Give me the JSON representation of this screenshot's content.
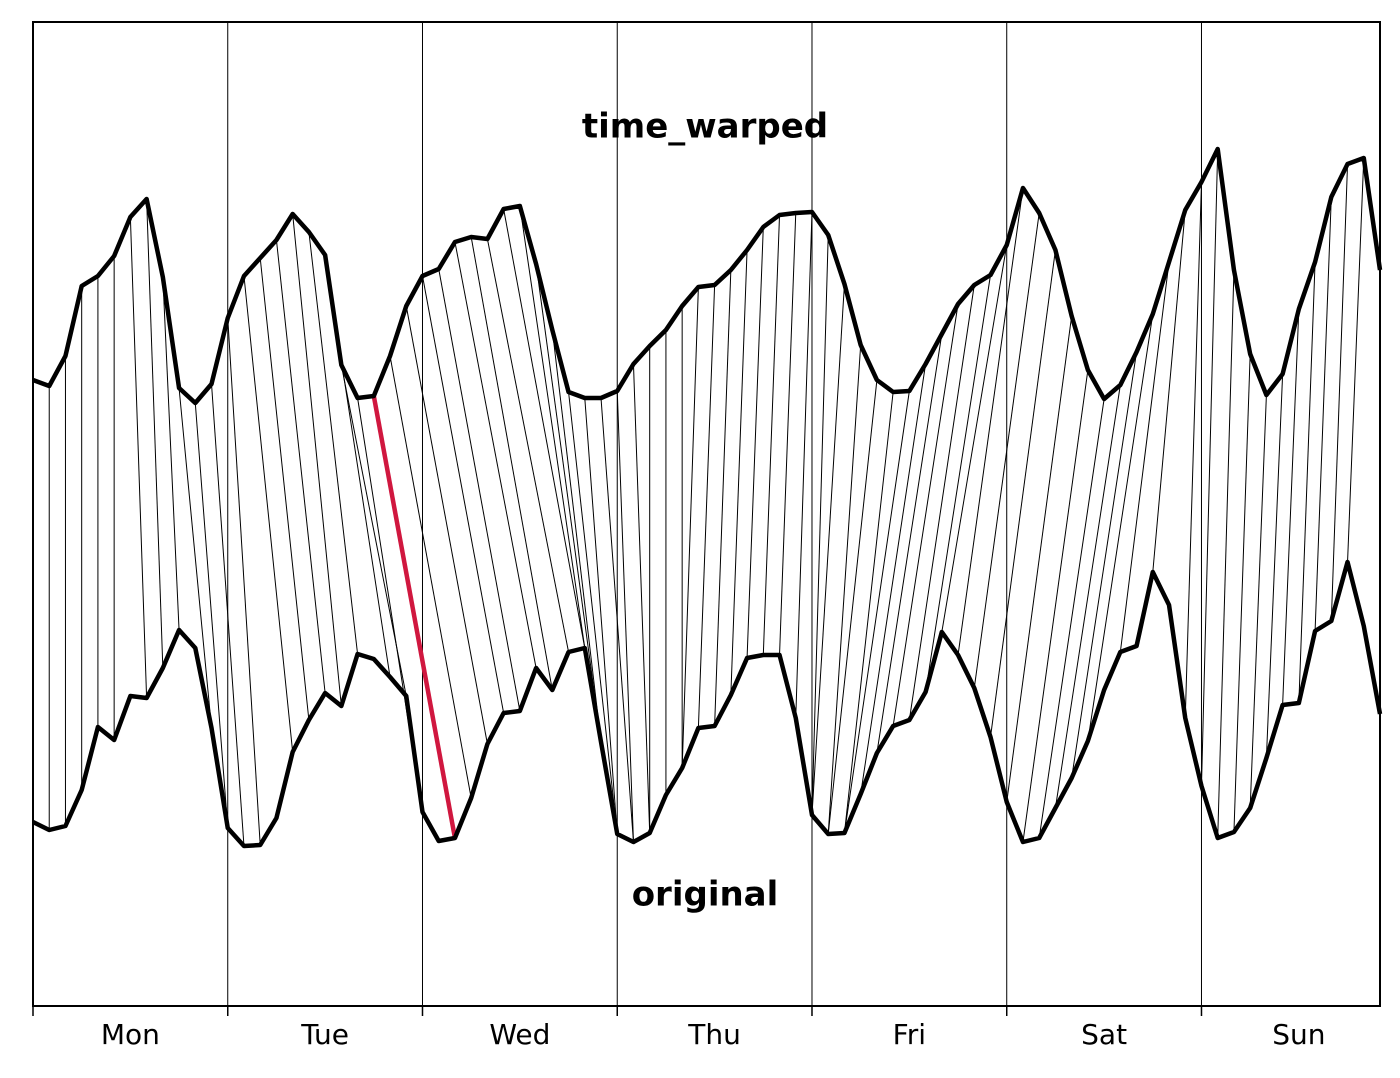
{
  "chart_data": {
    "type": "line",
    "categories": [
      "Mon",
      "Tue",
      "Wed",
      "Thu",
      "Fri",
      "Sat",
      "Sun"
    ],
    "xlim": [
      0,
      166
    ],
    "xticks": [
      0,
      24,
      48,
      72,
      96,
      120,
      144
    ],
    "ylim": [
      0,
      984
    ],
    "grid": true,
    "x": [
      0,
      2,
      4,
      6,
      8,
      10,
      12,
      14,
      16,
      18,
      20,
      22,
      24,
      26,
      28,
      30,
      32,
      34,
      36,
      38,
      40,
      42,
      44,
      46,
      48,
      50,
      52,
      54,
      56,
      58,
      60,
      62,
      64,
      66,
      68,
      70,
      72,
      74,
      76,
      78,
      80,
      82,
      84,
      86,
      88,
      90,
      92,
      94,
      96,
      98,
      100,
      102,
      104,
      106,
      108,
      110,
      112,
      114,
      116,
      118,
      120,
      122,
      124,
      126,
      128,
      130,
      132,
      134,
      136,
      138,
      140,
      142,
      144,
      146,
      148,
      150,
      152,
      154,
      156,
      158,
      160,
      162,
      164,
      166
    ],
    "series": [
      {
        "name": "time_warped",
        "color": "#000000",
        "values": [
          626,
          620,
          650,
          720,
          730,
          750,
          789,
          807,
          729,
          618,
          603,
          622,
          688,
          730,
          748,
          766,
          792,
          774,
          751,
          641,
          608,
          610,
          650,
          700,
          730,
          737,
          764,
          769,
          767,
          797,
          800,
          742,
          676,
          614,
          608,
          608,
          615,
          642,
          660,
          676,
          700,
          719,
          721,
          736,
          756,
          779,
          791,
          793,
          794,
          771,
          722,
          661,
          626,
          614,
          615,
          642,
          672,
          702,
          721,
          731,
          761,
          818,
          793,
          756,
          690,
          636,
          607,
          621,
          654,
          692,
          744,
          796,
          824,
          857,
          736,
          652,
          611,
          632,
          697,
          744,
          809,
          842,
          848,
          736
        ]
      },
      {
        "name": "original",
        "color": "#000000",
        "values": [
          184,
          176,
          180,
          216,
          279,
          266,
          310,
          308,
          338,
          376,
          358,
          278,
          178,
          160,
          161,
          188,
          254,
          286,
          313,
          300,
          352,
          347,
          329,
          310,
          194,
          165,
          168,
          208,
          262,
          293,
          295,
          338,
          316,
          354,
          358,
          264,
          172,
          164,
          173,
          211,
          238,
          278,
          280,
          311,
          348,
          351,
          351,
          288,
          191,
          172,
          173,
          212,
          253,
          280,
          286,
          314,
          374,
          351,
          318,
          269,
          204,
          164,
          168,
          198,
          228,
          265,
          316,
          354,
          360,
          434,
          401,
          288,
          220,
          168,
          174,
          198,
          248,
          301,
          303,
          375,
          385,
          444,
          380,
          292
        ]
      }
    ],
    "warp_path": [
      [
        0,
        0
      ],
      [
        2,
        2
      ],
      [
        4,
        4
      ],
      [
        6,
        6
      ],
      [
        8,
        8
      ],
      [
        10,
        10
      ],
      [
        12,
        14
      ],
      [
        14,
        16
      ],
      [
        16,
        18
      ],
      [
        18,
        22
      ],
      [
        20,
        24
      ],
      [
        22,
        26
      ],
      [
        24,
        28
      ],
      [
        26,
        32
      ],
      [
        28,
        34
      ],
      [
        30,
        36
      ],
      [
        32,
        38
      ],
      [
        34,
        40
      ],
      [
        36,
        44
      ],
      [
        38,
        46
      ],
      [
        40,
        48
      ],
      [
        42,
        52
      ],
      [
        44,
        54
      ],
      [
        46,
        56
      ],
      [
        48,
        58
      ],
      [
        50,
        60
      ],
      [
        52,
        62
      ],
      [
        54,
        64
      ],
      [
        56,
        66
      ],
      [
        58,
        68
      ],
      [
        60,
        68
      ],
      [
        62,
        70
      ],
      [
        64,
        70
      ],
      [
        66,
        72
      ],
      [
        68,
        72
      ],
      [
        70,
        74
      ],
      [
        72,
        74
      ],
      [
        74,
        76
      ],
      [
        76,
        76
      ],
      [
        78,
        78
      ],
      [
        80,
        80
      ],
      [
        82,
        80
      ],
      [
        84,
        82
      ],
      [
        86,
        84
      ],
      [
        88,
        86
      ],
      [
        90,
        88
      ],
      [
        92,
        90
      ],
      [
        94,
        92
      ],
      [
        96,
        94
      ],
      [
        98,
        96
      ],
      [
        100,
        96
      ],
      [
        102,
        98
      ],
      [
        104,
        98
      ],
      [
        106,
        100
      ],
      [
        108,
        100
      ],
      [
        110,
        102
      ],
      [
        112,
        104
      ],
      [
        114,
        106
      ],
      [
        116,
        108
      ],
      [
        118,
        110
      ],
      [
        120,
        112
      ],
      [
        122,
        114
      ],
      [
        124,
        116
      ],
      [
        126,
        118
      ],
      [
        128,
        120
      ],
      [
        130,
        122
      ],
      [
        132,
        124
      ],
      [
        134,
        126
      ],
      [
        136,
        128
      ],
      [
        138,
        130
      ],
      [
        140,
        134
      ],
      [
        142,
        138
      ],
      [
        144,
        142
      ],
      [
        146,
        144
      ],
      [
        148,
        146
      ],
      [
        150,
        148
      ],
      [
        152,
        150
      ],
      [
        154,
        152
      ],
      [
        156,
        154
      ],
      [
        158,
        156
      ],
      [
        160,
        158
      ],
      [
        162,
        160
      ],
      [
        164,
        162
      ],
      [
        166,
        166
      ]
    ],
    "warp_color": "#000000",
    "highlight_index": 21,
    "highlight_color": "#d0173f"
  }
}
